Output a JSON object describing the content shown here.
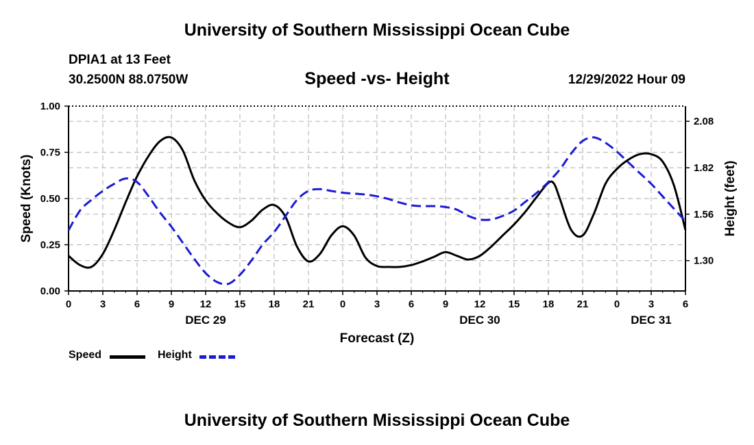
{
  "header": {
    "title": "University of Southern Mississippi Ocean Cube",
    "station": "DPIA1 at 13 Feet",
    "coordinates": "30.2500N  88.0750W",
    "subtitle": "Speed -vs- Height",
    "datetime": "12/29/2022 Hour 09"
  },
  "footer": {
    "title": "University of Southern Mississippi Ocean Cube"
  },
  "legend": {
    "speed_label": "Speed",
    "height_label": "Height"
  },
  "colors": {
    "speed": "#000000",
    "height": "#1a1ad6",
    "grid": "#bbbbbb"
  },
  "chart_data": {
    "type": "line",
    "title": "Speed -vs- Height",
    "xlabel": "Forecast (Z)",
    "ylabel_left": "Speed (Knots)",
    "ylabel_right": "Height (feet)",
    "x_unit": "forecast hours from DEC 29 00Z",
    "xlim": [
      0,
      54
    ],
    "ylim_left": [
      0,
      1
    ],
    "ylim_right": [
      1.13,
      2.165
    ],
    "x_ticks": [
      {
        "x": 0,
        "label": "0"
      },
      {
        "x": 3,
        "label": "3"
      },
      {
        "x": 6,
        "label": "6"
      },
      {
        "x": 9,
        "label": "9"
      },
      {
        "x": 12,
        "label": "12"
      },
      {
        "x": 15,
        "label": "15"
      },
      {
        "x": 18,
        "label": "18"
      },
      {
        "x": 21,
        "label": "21"
      },
      {
        "x": 24,
        "label": "0"
      },
      {
        "x": 27,
        "label": "3"
      },
      {
        "x": 30,
        "label": "6"
      },
      {
        "x": 33,
        "label": "9"
      },
      {
        "x": 36,
        "label": "12"
      },
      {
        "x": 39,
        "label": "15"
      },
      {
        "x": 42,
        "label": "18"
      },
      {
        "x": 45,
        "label": "21"
      },
      {
        "x": 48,
        "label": "0"
      },
      {
        "x": 51,
        "label": "3"
      },
      {
        "x": 54,
        "label": "6"
      }
    ],
    "day_labels": [
      {
        "x": 12,
        "label": "DEC 29"
      },
      {
        "x": 36,
        "label": "DEC 30"
      },
      {
        "x": 51,
        "label": "DEC 31"
      }
    ],
    "y_left_ticks": [
      {
        "v": 0,
        "label": "0.00"
      },
      {
        "v": 0.25,
        "label": "0.25"
      },
      {
        "v": 0.5,
        "label": "0.50"
      },
      {
        "v": 0.75,
        "label": "0.75"
      },
      {
        "v": 1.0,
        "label": "1.00"
      }
    ],
    "y_right_ticks": [
      {
        "v": 1.3,
        "label": "1.30"
      },
      {
        "v": 1.56,
        "label": "1.56"
      },
      {
        "v": 1.82,
        "label": "1.82"
      },
      {
        "v": 2.08,
        "label": "2.08"
      }
    ],
    "series": [
      {
        "name": "Speed",
        "axis": "left",
        "style": "solid",
        "points": [
          [
            0,
            0.19
          ],
          [
            1,
            0.14
          ],
          [
            2,
            0.13
          ],
          [
            3,
            0.2
          ],
          [
            4,
            0.33
          ],
          [
            5,
            0.48
          ],
          [
            6,
            0.62
          ],
          [
            7,
            0.73
          ],
          [
            8,
            0.81
          ],
          [
            9,
            0.83
          ],
          [
            10,
            0.76
          ],
          [
            11,
            0.6
          ],
          [
            12,
            0.49
          ],
          [
            13,
            0.42
          ],
          [
            14,
            0.37
          ],
          [
            15,
            0.345
          ],
          [
            16,
            0.38
          ],
          [
            17,
            0.44
          ],
          [
            18,
            0.465
          ],
          [
            19,
            0.4
          ],
          [
            20,
            0.24
          ],
          [
            21,
            0.16
          ],
          [
            22,
            0.2
          ],
          [
            23,
            0.3
          ],
          [
            24,
            0.35
          ],
          [
            25,
            0.3
          ],
          [
            26,
            0.18
          ],
          [
            27,
            0.135
          ],
          [
            28,
            0.13
          ],
          [
            29,
            0.13
          ],
          [
            30,
            0.14
          ],
          [
            31,
            0.16
          ],
          [
            32,
            0.185
          ],
          [
            33,
            0.21
          ],
          [
            34,
            0.19
          ],
          [
            35,
            0.17
          ],
          [
            36,
            0.19
          ],
          [
            37,
            0.24
          ],
          [
            38,
            0.3
          ],
          [
            39,
            0.36
          ],
          [
            40,
            0.43
          ],
          [
            41,
            0.51
          ],
          [
            42,
            0.585
          ],
          [
            42.5,
            0.58
          ],
          [
            43,
            0.5
          ],
          [
            44,
            0.33
          ],
          [
            45,
            0.3
          ],
          [
            46,
            0.42
          ],
          [
            47,
            0.58
          ],
          [
            48,
            0.66
          ],
          [
            49,
            0.71
          ],
          [
            50,
            0.74
          ],
          [
            51,
            0.74
          ],
          [
            52,
            0.7
          ],
          [
            53,
            0.57
          ],
          [
            54,
            0.33
          ]
        ]
      },
      {
        "name": "Height",
        "axis": "right",
        "style": "dashed",
        "points": [
          [
            0,
            1.47
          ],
          [
            1,
            1.58
          ],
          [
            2,
            1.64
          ],
          [
            3,
            1.69
          ],
          [
            4,
            1.73
          ],
          [
            5,
            1.76
          ],
          [
            6,
            1.74
          ],
          [
            7,
            1.66
          ],
          [
            8,
            1.57
          ],
          [
            9,
            1.49
          ],
          [
            10,
            1.4
          ],
          [
            11,
            1.31
          ],
          [
            12,
            1.23
          ],
          [
            13,
            1.18
          ],
          [
            14,
            1.17
          ],
          [
            15,
            1.22
          ],
          [
            16,
            1.3
          ],
          [
            17,
            1.39
          ],
          [
            18,
            1.46
          ],
          [
            19,
            1.55
          ],
          [
            20,
            1.64
          ],
          [
            21,
            1.69
          ],
          [
            22,
            1.7
          ],
          [
            23,
            1.69
          ],
          [
            24,
            1.68
          ],
          [
            25,
            1.675
          ],
          [
            26,
            1.67
          ],
          [
            27,
            1.66
          ],
          [
            28,
            1.645
          ],
          [
            29,
            1.625
          ],
          [
            30,
            1.61
          ],
          [
            31,
            1.605
          ],
          [
            32,
            1.605
          ],
          [
            33,
            1.6
          ],
          [
            34,
            1.585
          ],
          [
            35,
            1.55
          ],
          [
            36,
            1.53
          ],
          [
            37,
            1.53
          ],
          [
            38,
            1.55
          ],
          [
            39,
            1.58
          ],
          [
            40,
            1.63
          ],
          [
            41,
            1.68
          ],
          [
            42,
            1.74
          ],
          [
            43,
            1.81
          ],
          [
            44,
            1.9
          ],
          [
            45,
            1.97
          ],
          [
            46,
            1.99
          ],
          [
            47,
            1.96
          ],
          [
            48,
            1.91
          ],
          [
            49,
            1.85
          ],
          [
            50,
            1.79
          ],
          [
            51,
            1.73
          ],
          [
            52,
            1.66
          ],
          [
            53,
            1.59
          ],
          [
            54,
            1.52
          ]
        ]
      }
    ]
  }
}
